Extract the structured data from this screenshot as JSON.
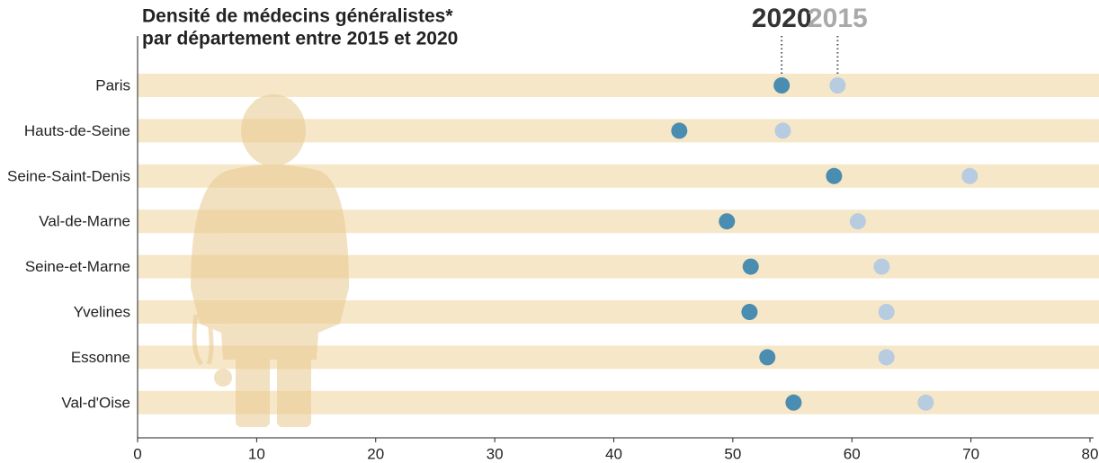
{
  "chart_data": {
    "type": "dot",
    "title": [
      "Densité de médecins généralistes*",
      "par département entre 2015 et 2020"
    ],
    "categories": [
      "Paris",
      "Hauts-de-Seine",
      "Seine-Saint-Denis",
      "Val-de-Marne",
      "Seine-et-Marne",
      "Yvelines",
      "Essonne",
      "Val-d'Oise"
    ],
    "series": [
      {
        "name": "2020",
        "color": "#4a8db0",
        "label_color": "#333333",
        "values": [
          54.1,
          45.5,
          58.5,
          49.5,
          51.5,
          51.4,
          52.9,
          55.1
        ]
      },
      {
        "name": "2015",
        "color": "#b7cce0",
        "label_color": "#a9a9a9",
        "values": [
          58.8,
          54.2,
          69.9,
          60.5,
          62.5,
          62.9,
          62.9,
          66.2
        ]
      }
    ],
    "xlim": [
      0,
      80
    ],
    "xticks": [
      0,
      10,
      20,
      30,
      40,
      50,
      60,
      70,
      80
    ],
    "band_color": "#f7e7c9"
  }
}
